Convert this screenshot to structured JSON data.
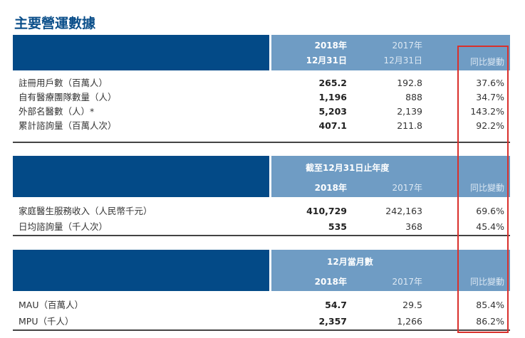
{
  "title": "主要營運數據",
  "colors": {
    "header_dark": "#034a87",
    "header_light": "#6f9cc4",
    "highlight_box": "#d9302c"
  },
  "sections": [
    {
      "group": "",
      "col2018": [
        "2018年",
        "12月31日"
      ],
      "col2017": [
        "2017年",
        "12月31日"
      ],
      "change": "同比變動",
      "rows": [
        {
          "label": "註冊用戶數（百萬人）",
          "v2018": "265.2",
          "v2017": "192.8",
          "change": "37.6%"
        },
        {
          "label": "自有醫療團隊數量（人）",
          "v2018": "1,196",
          "v2017": "888",
          "change": "34.7%"
        },
        {
          "label": "外部名醫數（人）*",
          "v2018": "5,203",
          "v2017": "2,139",
          "change": "143.2%"
        },
        {
          "label": "累計諮詢量（百萬人次）",
          "v2018": "407.1",
          "v2017": "211.8",
          "change": "92.2%"
        }
      ]
    },
    {
      "group": "截至12月31日止年度",
      "col2018": [
        "2018年"
      ],
      "col2017": [
        "2017年"
      ],
      "change": "同比變動",
      "rows": [
        {
          "label": "家庭醫生服務收入（人民幣千元）",
          "v2018": "410,729",
          "v2017": "242,163",
          "change": "69.6%"
        },
        {
          "label": "日均諮詢量（千人次）",
          "v2018": "535",
          "v2017": "368",
          "change": "45.4%"
        }
      ]
    },
    {
      "group": "12月當月數",
      "col2018": [
        "2018年"
      ],
      "col2017": [
        "2017年"
      ],
      "change": "同比變動",
      "rows": [
        {
          "label": "MAU（百萬人）",
          "v2018": "54.7",
          "v2017": "29.5",
          "change": "85.4%"
        },
        {
          "label": "MPU（千人）",
          "v2018": "2,357",
          "v2017": "1,266",
          "change": "86.2%"
        }
      ]
    }
  ]
}
